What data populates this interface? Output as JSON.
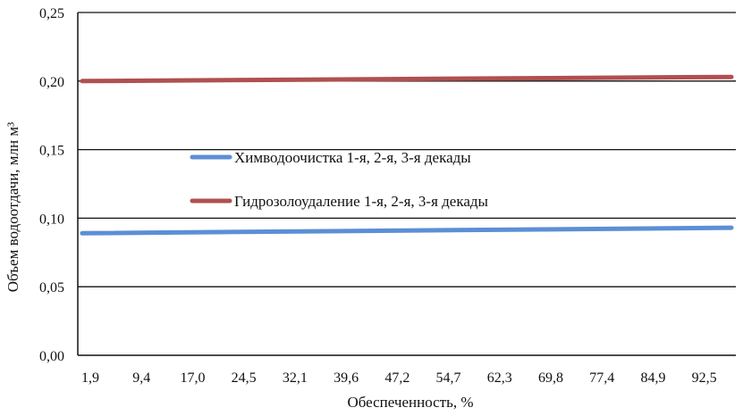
{
  "chart_data": {
    "type": "line",
    "title": "",
    "xlabel": "Обеспеченность, %",
    "ylabel": "Объем водоотдачи, млн м³",
    "x_ticks": [
      "1,9",
      "9,4",
      "17,0",
      "24,5",
      "32,1",
      "39,6",
      "47,2",
      "54,7",
      "62,3",
      "69,8",
      "77,4",
      "84,9",
      "92,5"
    ],
    "y_ticks": [
      "0,00",
      "0,05",
      "0,10",
      "0,15",
      "0,20",
      "0,25"
    ],
    "ylim": [
      0,
      0.25
    ],
    "x_range": [
      1.9,
      99.0
    ],
    "grid": "horizontal",
    "legend": "inside-center-left",
    "series": [
      {
        "name": "Химводоочистка 1-я, 2-я, 3-я декады",
        "color": "#5b8fd6",
        "x": [
          1.9,
          99.0
        ],
        "values": [
          0.089,
          0.093
        ]
      },
      {
        "name": "Гидрозолоудаление 1-я, 2-я, 3-я декады",
        "color": "#b05050",
        "x": [
          1.9,
          99.0
        ],
        "values": [
          0.2,
          0.203
        ]
      }
    ]
  }
}
